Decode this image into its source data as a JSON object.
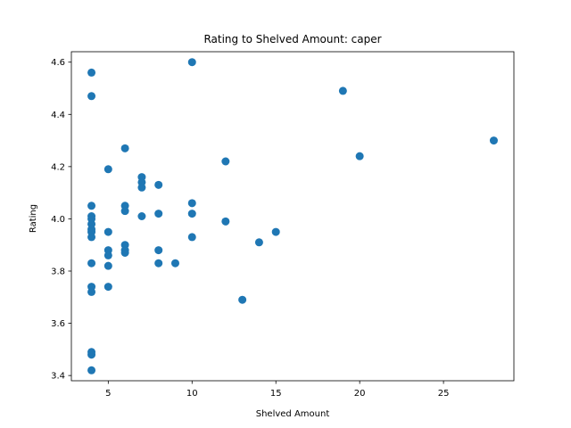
{
  "chart_data": {
    "type": "scatter",
    "title": "Rating to Shelved Amount: caper",
    "xlabel": "Shelved Amount",
    "ylabel": "Rating",
    "xlim": [
      2.8,
      29.2
    ],
    "ylim": [
      3.38,
      4.64
    ],
    "xticks": [
      5,
      10,
      15,
      20,
      25
    ],
    "yticks": [
      3.4,
      3.6,
      3.8,
      4.0,
      4.2,
      4.4,
      4.6
    ],
    "ytick_labels": [
      "3.4",
      "3.6",
      "3.8",
      "4.0",
      "4.2",
      "4.4",
      "4.6"
    ],
    "grid": false,
    "color": "#1f77b4",
    "series": [
      {
        "points": [
          [
            4,
            4.56
          ],
          [
            4,
            4.47
          ],
          [
            4,
            4.05
          ],
          [
            4,
            4.01
          ],
          [
            4,
            4.0
          ],
          [
            4,
            3.98
          ],
          [
            4,
            3.96
          ],
          [
            4,
            3.95
          ],
          [
            4,
            3.93
          ],
          [
            4,
            3.83
          ],
          [
            4,
            3.74
          ],
          [
            4,
            3.72
          ],
          [
            4,
            3.49
          ],
          [
            4,
            3.48
          ],
          [
            4,
            3.42
          ],
          [
            5,
            4.19
          ],
          [
            5,
            3.95
          ],
          [
            5,
            3.88
          ],
          [
            5,
            3.86
          ],
          [
            5,
            3.82
          ],
          [
            5,
            3.74
          ],
          [
            6,
            4.27
          ],
          [
            6,
            4.05
          ],
          [
            6,
            4.03
          ],
          [
            6,
            3.9
          ],
          [
            6,
            3.88
          ],
          [
            6,
            3.87
          ],
          [
            7,
            4.16
          ],
          [
            7,
            4.14
          ],
          [
            7,
            4.12
          ],
          [
            7,
            4.01
          ],
          [
            8,
            4.13
          ],
          [
            8,
            4.02
          ],
          [
            8,
            3.88
          ],
          [
            8,
            3.83
          ],
          [
            9,
            3.83
          ],
          [
            10,
            4.6
          ],
          [
            10,
            4.06
          ],
          [
            10,
            4.02
          ],
          [
            10,
            3.93
          ],
          [
            12,
            4.22
          ],
          [
            12,
            3.99
          ],
          [
            13,
            3.69
          ],
          [
            14,
            3.91
          ],
          [
            15,
            3.95
          ],
          [
            19,
            4.49
          ],
          [
            20,
            4.24
          ],
          [
            28,
            4.3
          ]
        ]
      }
    ]
  }
}
